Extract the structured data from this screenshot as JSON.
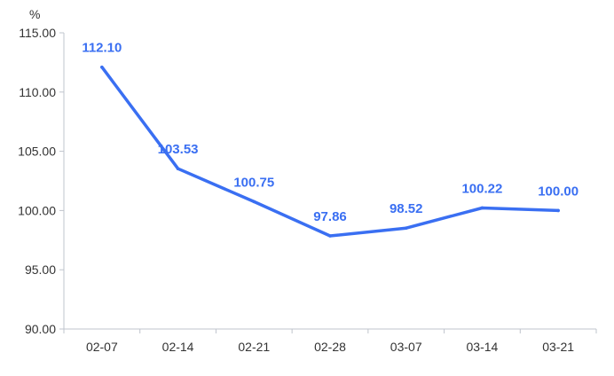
{
  "chart_data": {
    "type": "line",
    "title": "",
    "xlabel": "",
    "ylabel": "%",
    "categories": [
      "02-07",
      "02-14",
      "02-21",
      "02-28",
      "03-07",
      "03-14",
      "03-21"
    ],
    "series": [
      {
        "values": [
          112.1,
          103.53,
          100.75,
          97.86,
          98.52,
          100.22,
          100.0
        ],
        "color": "#3a6ff2",
        "data_labels": [
          "112.10",
          "103.53",
          "100.75",
          "97.86",
          "98.52",
          "100.22",
          "100.00"
        ]
      }
    ],
    "ylim": [
      90,
      115
    ],
    "y_ticks": [
      {
        "value": 90,
        "label": "90.00"
      },
      {
        "value": 95,
        "label": "95.00"
      },
      {
        "value": 100,
        "label": "100.00"
      },
      {
        "value": 105,
        "label": "105.00"
      },
      {
        "value": 110,
        "label": "110.00"
      },
      {
        "value": 115,
        "label": "115.00"
      }
    ],
    "grid": false,
    "legend": "none",
    "drop_lines": true
  }
}
